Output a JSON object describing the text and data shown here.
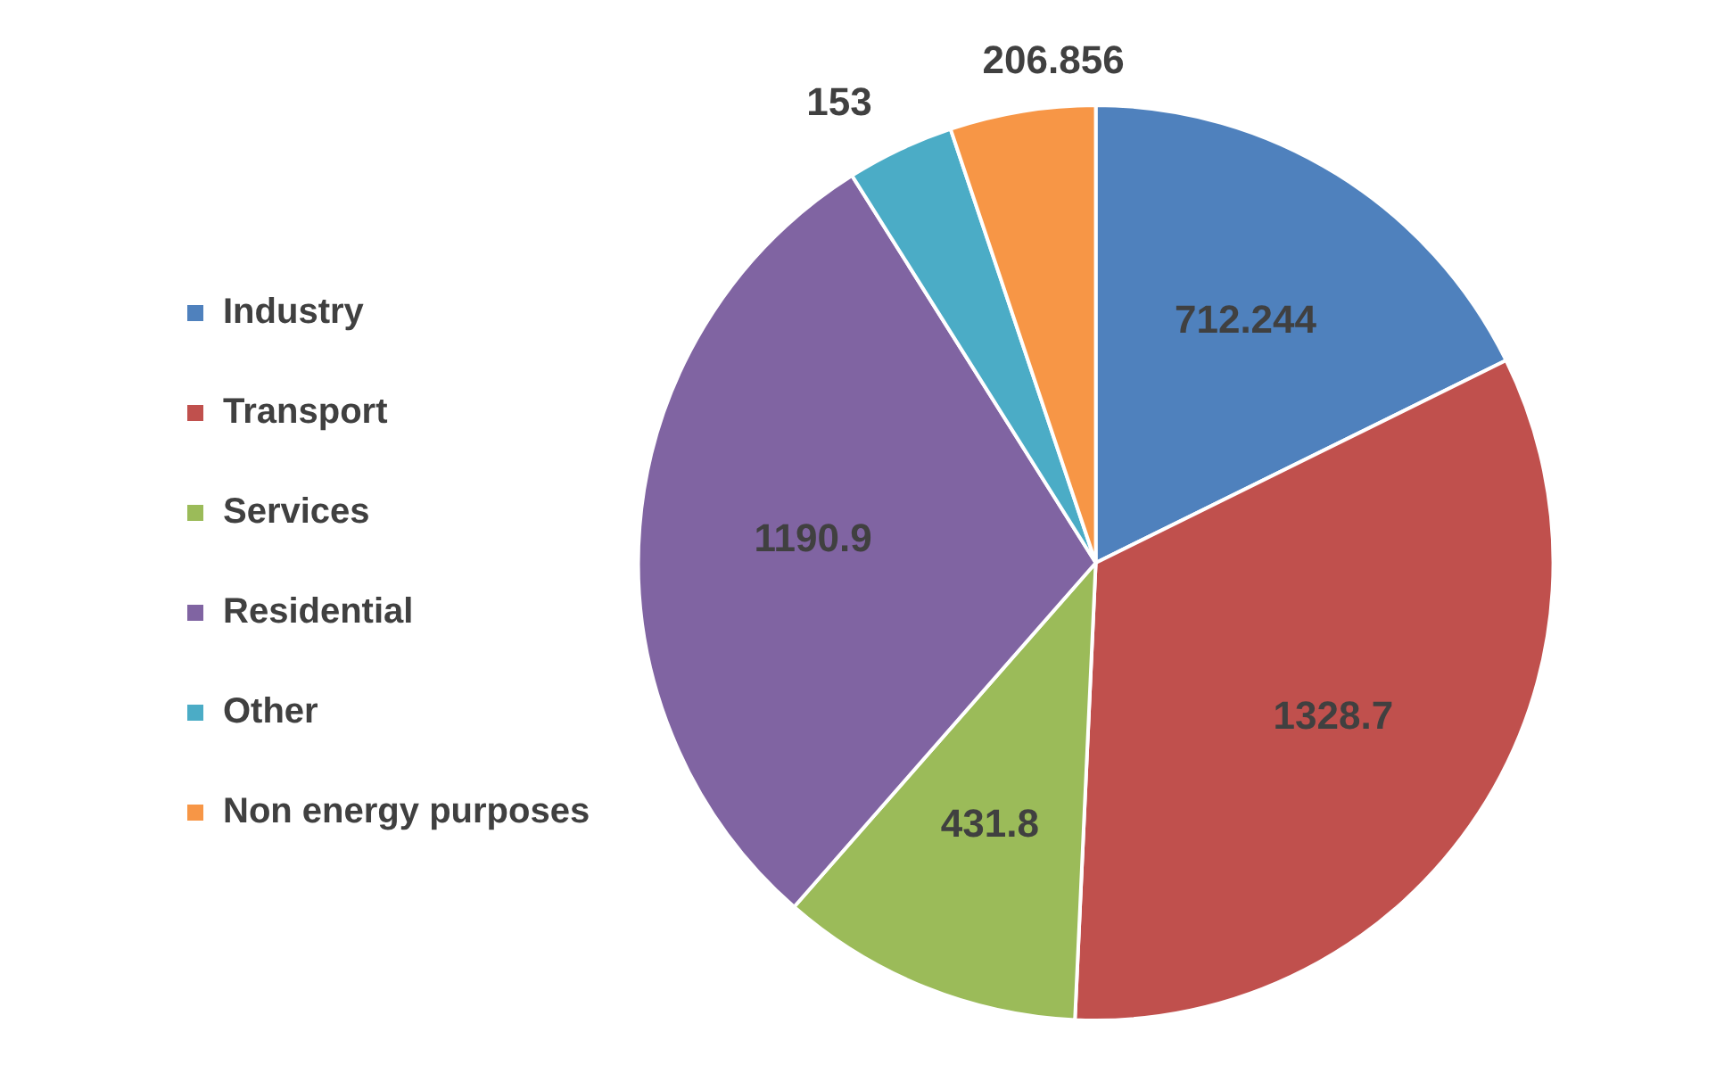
{
  "chart_data": {
    "type": "pie",
    "categories": [
      "Industry",
      "Transport",
      "Services",
      "Residential",
      "Other",
      "Non energy purposes"
    ],
    "values": [
      712.244,
      1328.7,
      431.8,
      1190.9,
      153,
      206.856
    ],
    "colors": [
      "#4f81bd",
      "#c0504d",
      "#9bbb59",
      "#8064a2",
      "#4bacc6",
      "#f79646"
    ],
    "legend": "left",
    "data_labels": true
  }
}
